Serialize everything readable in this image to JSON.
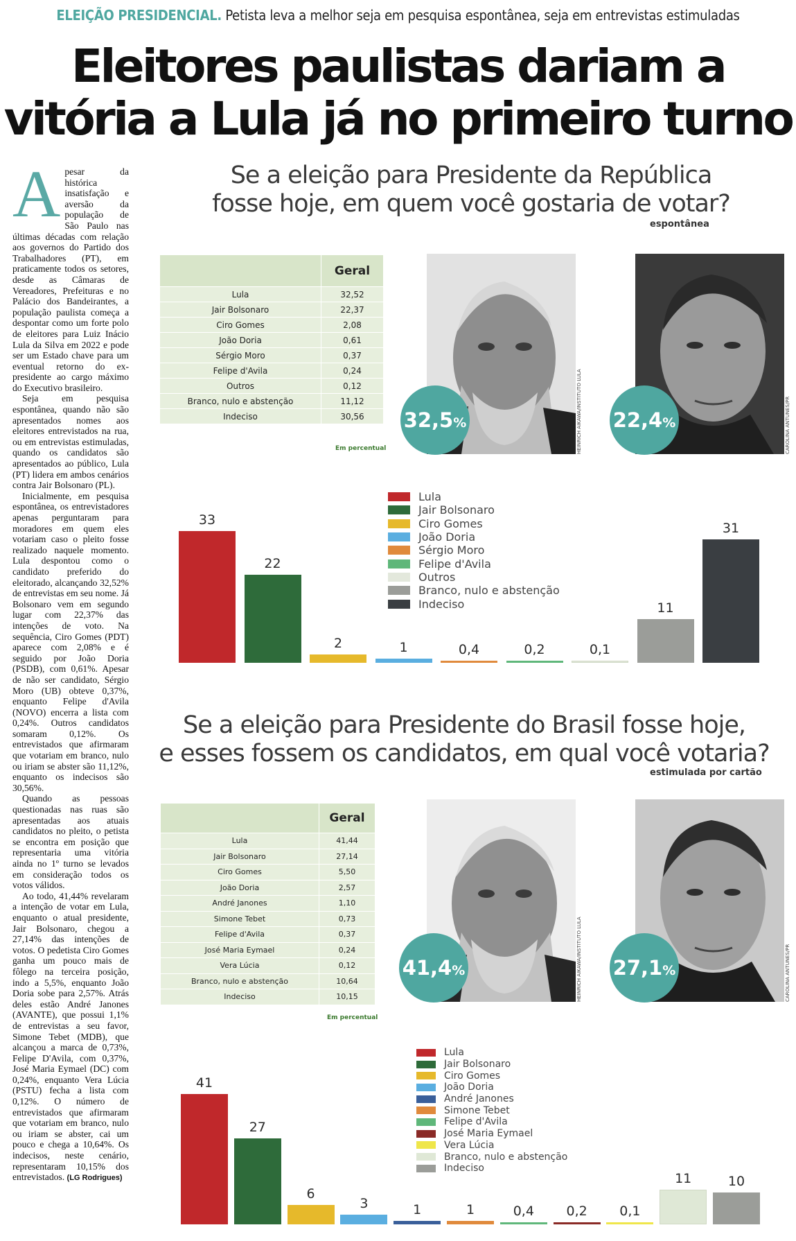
{
  "kicker": {
    "tag": "ELEIÇÃO PRESIDENCIAL.",
    "text": "Petista leva a melhor seja em pesquisa espontânea, seja em entrevistas estimuladas"
  },
  "headline": {
    "line1": "Eleitores paulistas dariam a",
    "line2": "vitória a Lula já no primeiro turno"
  },
  "article": {
    "dropcap": "A",
    "paragraphs": [
      "pesar da histórica insatisfação e aversão da população de São Paulo nas últimas décadas com relação aos governos do Partido dos Trabalhadores (PT), em praticamente todos os setores, desde as Câmaras de Vereadores, Prefeituras e no Palácio dos Bandeirantes, a população paulista começa a despontar como um forte polo de eleitores para Luiz Inácio Lula da Silva em 2022 e pode ser um Estado chave para um eventual retorno do ex-presidente ao cargo máximo do Executivo brasileiro.",
      "Seja em pesquisa espontânea, quando não são apresentados nomes aos eleitores entrevistados na rua, ou em entrevistas estimuladas, quando os candidatos são apresentados ao público, Lula (PT) lidera em ambos cenários contra Jair Bolsonaro (PL).",
      "Inicialmente, em pesquisa espontânea, os entrevistadores apenas perguntaram para moradores em quem eles votariam caso o pleito fosse realizado naquele momento. Lula despontou como o candidato preferido do eleitorado, alcançando 32,52% de entrevistas em seu nome. Já Bolsonaro vem em segundo lugar com 22,37% das intenções de voto. Na sequência, Ciro Gomes (PDT) aparece com 2,08% e é seguido por João Doria (PSDB), com 0,61%. Apesar de não ser candidato, Sérgio Moro (UB) obteve 0,37%, enquanto Felipe d'Avila (NOVO) encerra a lista com 0,24%. Outros candidatos somaram 0,12%. Os entrevistados que afirmaram que votariam em branco, nulo ou iriam se abster são 11,12%, enquanto os indecisos são 30,56%.",
      "Quando as pessoas questionadas nas ruas são apresentadas aos atuais candidatos no pleito, o petista se encontra em posição que representaria uma vitória ainda no 1º turno se levados em consideração todos os votos válidos.",
      "Ao todo, 41,44% revelaram a intenção de votar em Lula, enquanto o atual presidente, Jair Bolsonaro, chegou a 27,14% das intenções de votos. O pedetista Ciro Gomes ganha um pouco mais de fôlego na terceira posição, indo a 5,5%, enquanto João Doria sobe para 2,57%. Atrás deles estão André Janones (AVANTE), que possui 1,1% de entrevistas a seu favor, Simone Tebet (MDB), que alcançou a marca de 0,73%, Felipe D'Avila, com 0,37%, José Maria Eymael (DC) com 0,24%, enquanto Vera Lúcia (PSTU) fecha a lista com 0,12%. O número de entrevistados que afirmaram que votariam em branco, nulo ou iriam se abster, cai um pouco e chega a 10,64%. Os indecisos, neste cenário, representaram 10,15% dos entrevistados."
    ],
    "byline": "(LG Rodrigues)"
  },
  "poll1": {
    "title_line1": "Se a eleição para Presidente da República",
    "title_line2": "fosse hoje, em quem você gostaria de votar?",
    "subtitle": "espontânea",
    "table_header": "Geral",
    "rows": [
      {
        "name": "Lula",
        "value": "32,52"
      },
      {
        "name": "Jair Bolsonaro",
        "value": "22,37"
      },
      {
        "name": "Ciro Gomes",
        "value": "2,08"
      },
      {
        "name": "João Doria",
        "value": "0,61"
      },
      {
        "name": "Sérgio Moro",
        "value": "0,37"
      },
      {
        "name": "Felipe d'Avila",
        "value": "0,24"
      },
      {
        "name": "Outros",
        "value": "0,12"
      },
      {
        "name": "Branco, nulo e abstenção",
        "value": "11,12"
      },
      {
        "name": "Indeciso",
        "value": "30,56"
      }
    ],
    "table_note": "Em percentual",
    "photo1_pct": "32,5",
    "photo1_credit": "HEINRICH AIKAWA/INSTITUTO LULA",
    "photo2_pct": "22,4",
    "photo2_credit": "CAROLINA ANTUNES/PR",
    "pct_suffix": "%"
  },
  "poll2": {
    "title_line1": "Se a eleição para Presidente do Brasil fosse hoje,",
    "title_line2": "e esses fossem os candidatos, em qual você votaria?",
    "subtitle": "estimulada por cartão",
    "table_header": "Geral",
    "rows": [
      {
        "name": "Lula",
        "value": "41,44"
      },
      {
        "name": "Jair Bolsonaro",
        "value": "27,14"
      },
      {
        "name": "Ciro Gomes",
        "value": "5,50"
      },
      {
        "name": "João Doria",
        "value": "2,57"
      },
      {
        "name": "André Janones",
        "value": "1,10"
      },
      {
        "name": "Simone Tebet",
        "value": "0,73"
      },
      {
        "name": "Felipe d'Avila",
        "value": "0,37"
      },
      {
        "name": "José Maria Eymael",
        "value": "0,24"
      },
      {
        "name": "Vera Lúcia",
        "value": "0,12"
      },
      {
        "name": "Branco, nulo e abstenção",
        "value": "10,64"
      },
      {
        "name": "Indeciso",
        "value": "10,15"
      }
    ],
    "table_note": "Em percentual",
    "photo1_pct": "41,4",
    "photo1_credit": "HEINRICH AIKAWA/INSTITUTO LULA",
    "photo2_pct": "27,1",
    "photo2_credit": "CAROLINA ANTUNES/PR",
    "pct_suffix": "%"
  },
  "chart_data": [
    {
      "type": "bar",
      "categories": [
        "Lula",
        "Jair Bolsonaro",
        "Ciro Gomes",
        "João Doria",
        "Sérgio Moro",
        "Felipe d'Avila",
        "Outros",
        "Branco, nulo e abstenção",
        "Indeciso"
      ],
      "values": [
        33,
        22,
        2,
        1,
        0.4,
        0.2,
        0.1,
        11,
        31
      ],
      "labels": [
        "33",
        "22",
        "2",
        "1",
        "0,4",
        "0,2",
        "0,1",
        "11",
        "31"
      ],
      "colors": [
        "#c0282b",
        "#2e6b3a",
        "#e6b92b",
        "#5aaee0",
        "#e08a3c",
        "#5fb77a",
        "#e3e8dc",
        "#9b9d99",
        "#3a3e42"
      ],
      "legend": "right-top",
      "ylim": [
        0,
        33
      ]
    },
    {
      "type": "bar",
      "categories": [
        "Lula",
        "Jair Bolsonaro",
        "Ciro Gomes",
        "João Doria",
        "André Janones",
        "Simone Tebet",
        "Felipe d'Avila",
        "José Maria Eymael",
        "Vera Lúcia",
        "Branco, nulo e abstenção",
        "Indeciso"
      ],
      "values": [
        41,
        27,
        6,
        3,
        1,
        1,
        0.4,
        0.2,
        0.1,
        11,
        10
      ],
      "labels": [
        "41",
        "27",
        "6",
        "3",
        "1",
        "1",
        "0,4",
        "0,2",
        "0,1",
        "11",
        "10"
      ],
      "colors": [
        "#c0282b",
        "#2e6b3a",
        "#e6b92b",
        "#5aaee0",
        "#3a5f9a",
        "#e08a3c",
        "#5fb77a",
        "#8a2a26",
        "#efe64a",
        "#dfe8d6",
        "#9b9d99"
      ],
      "legend": "center-top",
      "ylim": [
        0,
        41
      ]
    }
  ]
}
